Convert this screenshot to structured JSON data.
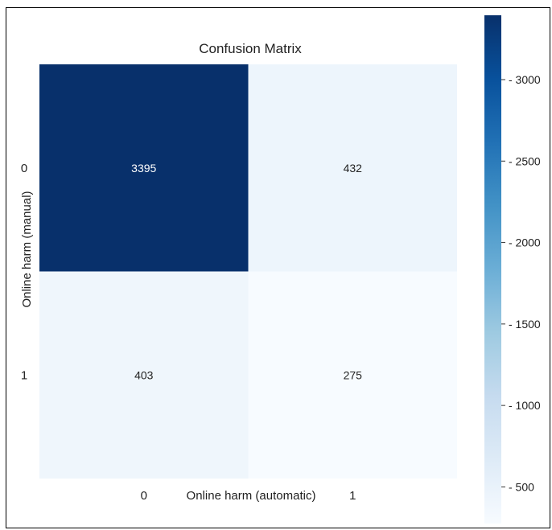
{
  "chart_data": {
    "type": "heatmap",
    "title": "Confusion Matrix",
    "xlabel": "Online harm (automatic)",
    "ylabel": "Online harm (manual)",
    "x_categories": [
      "0",
      "1"
    ],
    "y_categories": [
      "0",
      "1"
    ],
    "values": [
      [
        3395,
        432
      ],
      [
        403,
        275
      ]
    ],
    "colormap": "Blues",
    "colorbar": {
      "ticks": [
        500,
        1000,
        1500,
        2000,
        2500,
        3000
      ],
      "range": [
        275,
        3395
      ],
      "location": "right"
    },
    "colors": {
      "low": "#f7fbff",
      "high": "#08306b",
      "cell_text_dark_bg": "#ffffff",
      "cell_text_light_bg": "#222222"
    }
  }
}
